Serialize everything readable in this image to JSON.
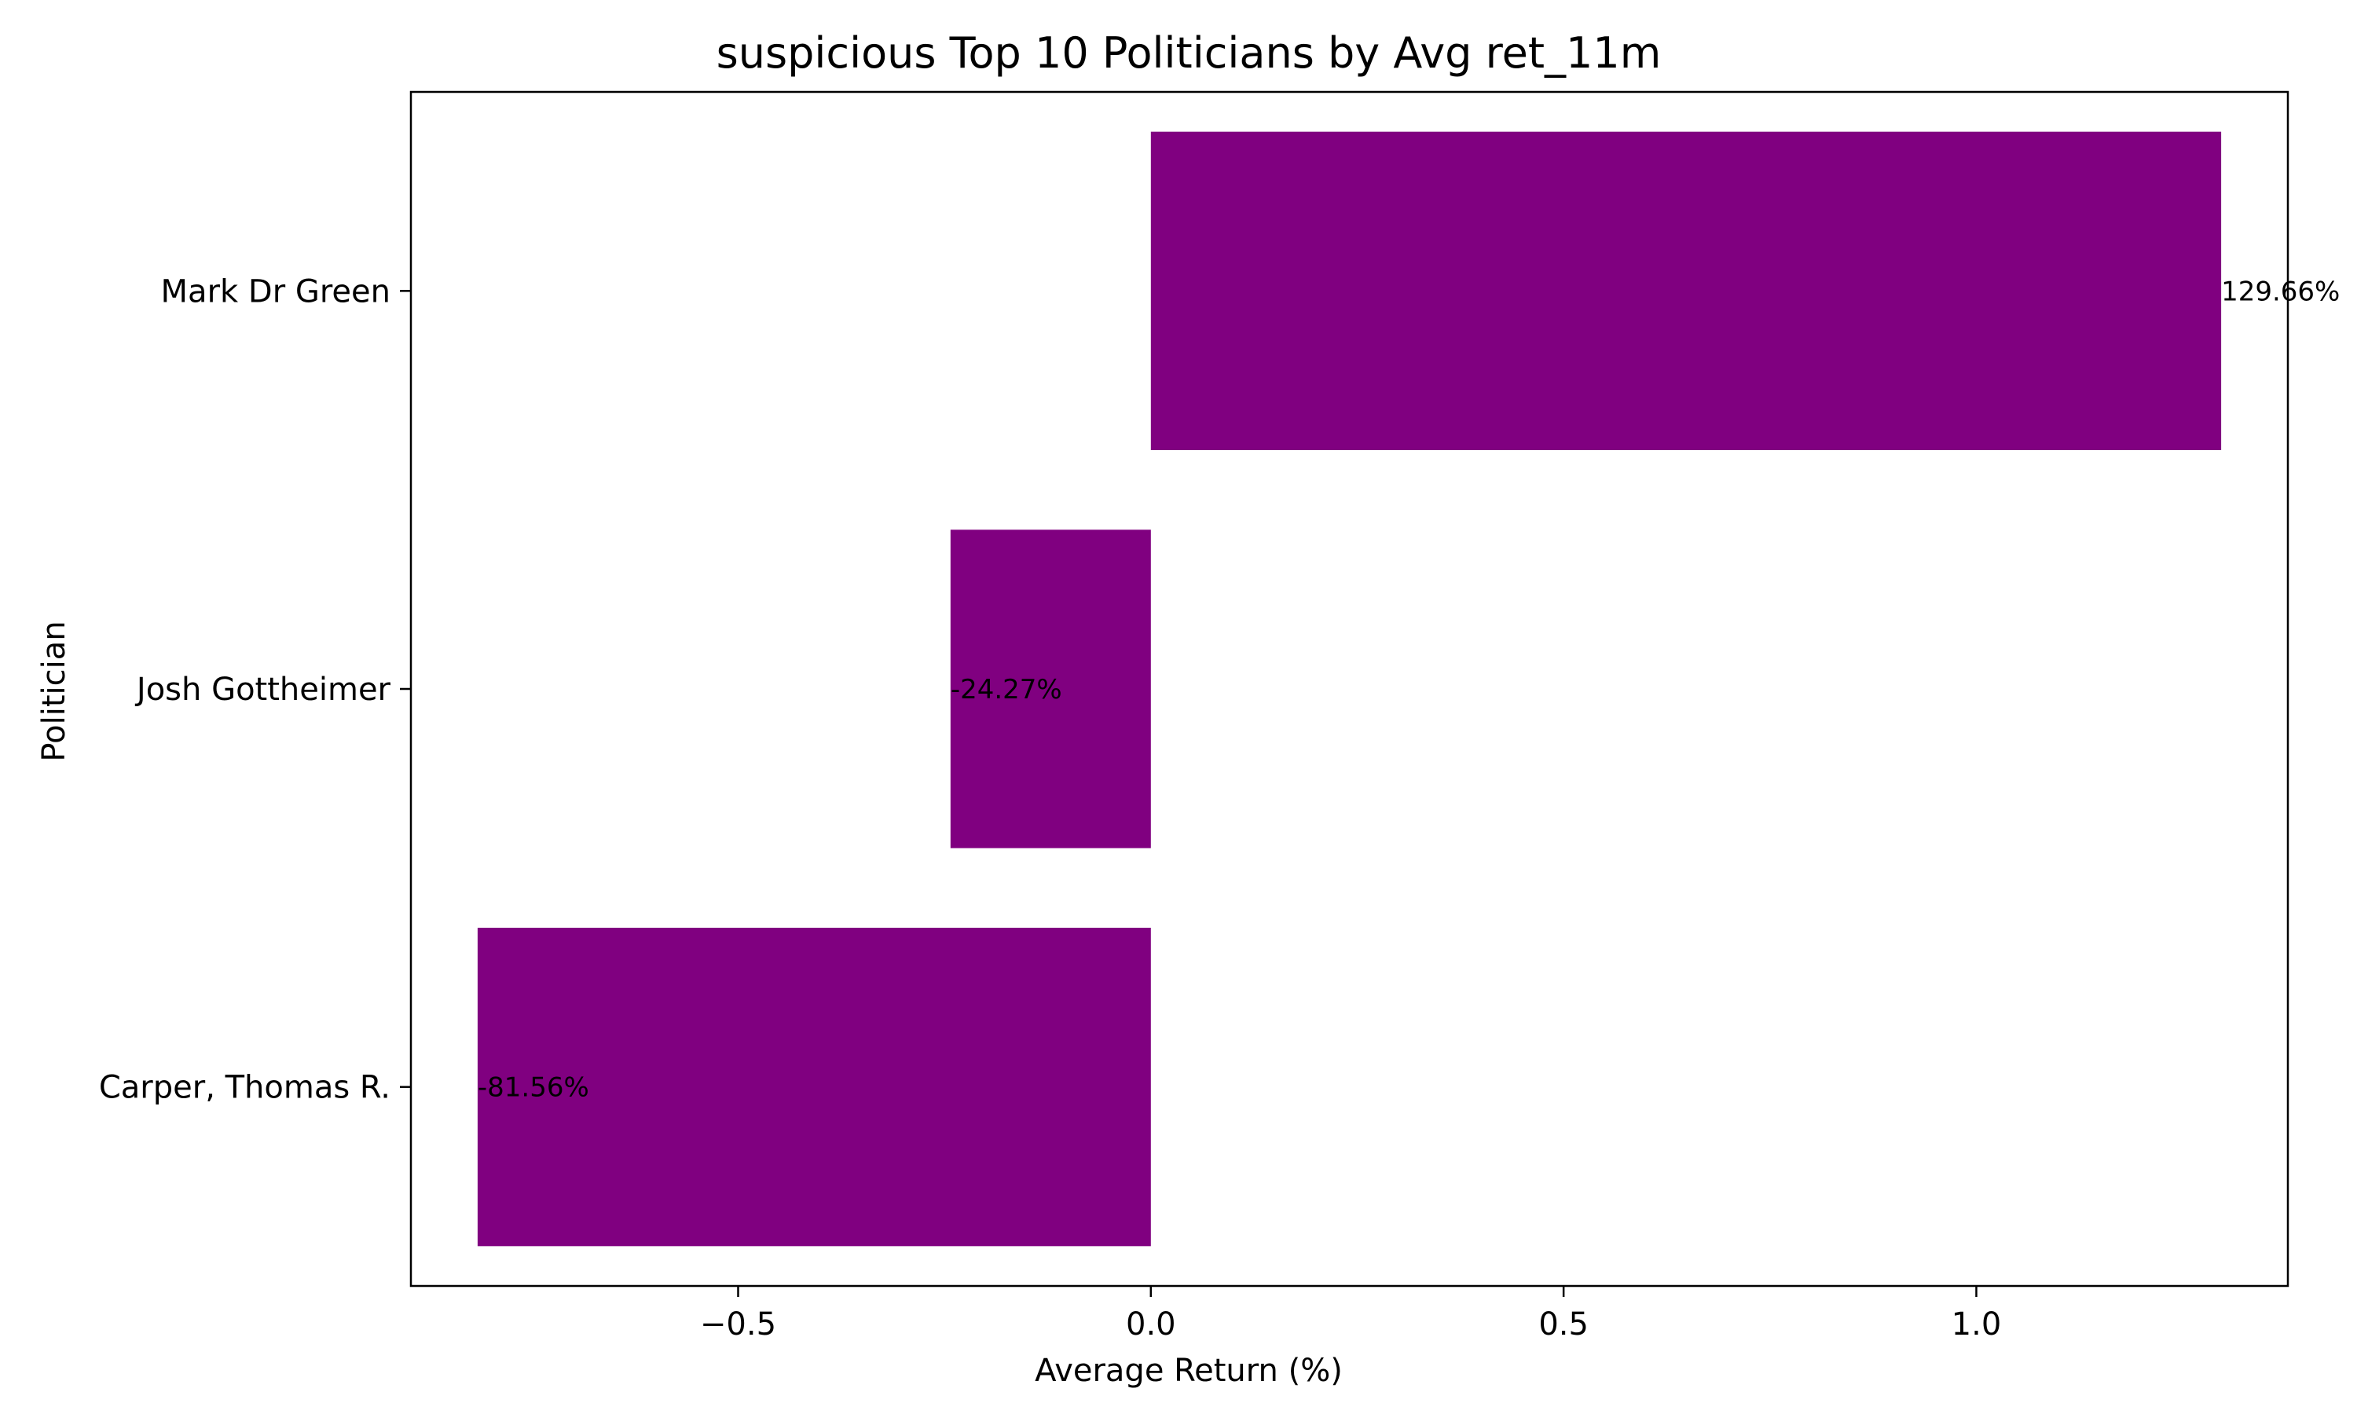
{
  "chart_data": {
    "type": "bar",
    "orientation": "horizontal",
    "title": "suspicious Top 10 Politicians by Avg ret_11m",
    "xlabel": "Average Return (%)",
    "ylabel": "Politician",
    "categories": [
      "Mark Dr Green",
      "Josh Gottheimer",
      "Carper, Thomas R."
    ],
    "values": [
      1.2966,
      -0.2427,
      -0.8156
    ],
    "data_labels": [
      "129.66%",
      "-24.27%",
      "-81.56%"
    ],
    "xlim": [
      -0.8964,
      1.3774
    ],
    "xticks": [
      -0.5,
      0.0,
      0.5,
      1.0
    ],
    "xtick_labels": [
      "−0.5",
      "0.0",
      "0.5",
      "1.0"
    ],
    "bar_color": "#800080",
    "grid": false,
    "legend": "none"
  }
}
